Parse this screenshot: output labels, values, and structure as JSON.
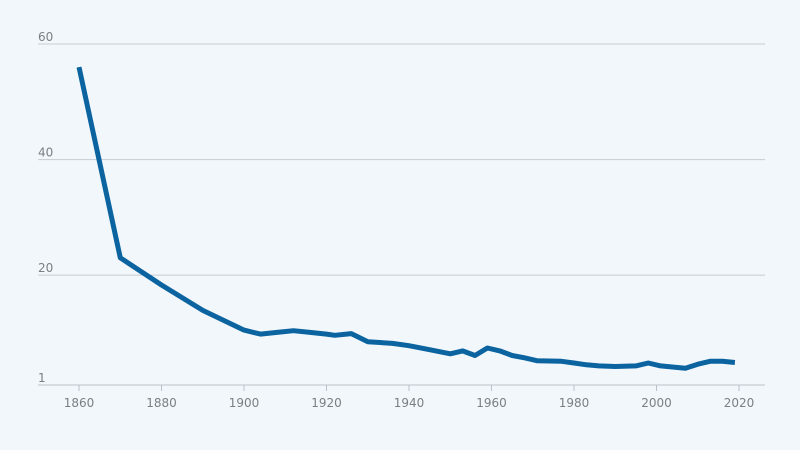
{
  "chart_data": {
    "type": "line",
    "title": "",
    "xlabel": "",
    "ylabel": "",
    "xlim": [
      1850,
      2025
    ],
    "ylim": [
      1,
      60
    ],
    "grid": true,
    "x_ticks": [
      "1860",
      "1880",
      "1900",
      "1920",
      "1940",
      "1960",
      "1980",
      "2000",
      "2020"
    ],
    "y_ticks": [
      "1",
      "20",
      "40",
      "60"
    ],
    "colors": {
      "line": "#0b63a0",
      "grid": "#c5ccd3",
      "background": "#f2f7fb",
      "text": "#7a7f85"
    },
    "series": [
      {
        "x": [
          1860,
          1870,
          1880,
          1890,
          1900,
          1904,
          1908,
          1912,
          1916,
          1920,
          1922,
          1926,
          1930,
          1936,
          1940,
          1945,
          1950,
          1953,
          1956,
          1959,
          1962,
          1965,
          1968,
          1971,
          1977,
          1980,
          1983,
          1986,
          1990,
          1995,
          1998,
          2001,
          2007,
          2010,
          2013,
          2016,
          2019
        ],
        "y": [
          56,
          23,
          18.3,
          13.9,
          10.5,
          9.8,
          10.1,
          10.4,
          10.1,
          9.8,
          9.6,
          9.9,
          8.5,
          8.2,
          7.8,
          7.1,
          6.4,
          6.9,
          6.1,
          7.4,
          6.9,
          6.1,
          5.7,
          5.2,
          5.1,
          4.8,
          4.5,
          4.3,
          4.2,
          4.3,
          4.8,
          4.3,
          3.9,
          4.6,
          5.1,
          5.1,
          4.9
        ]
      }
    ]
  }
}
